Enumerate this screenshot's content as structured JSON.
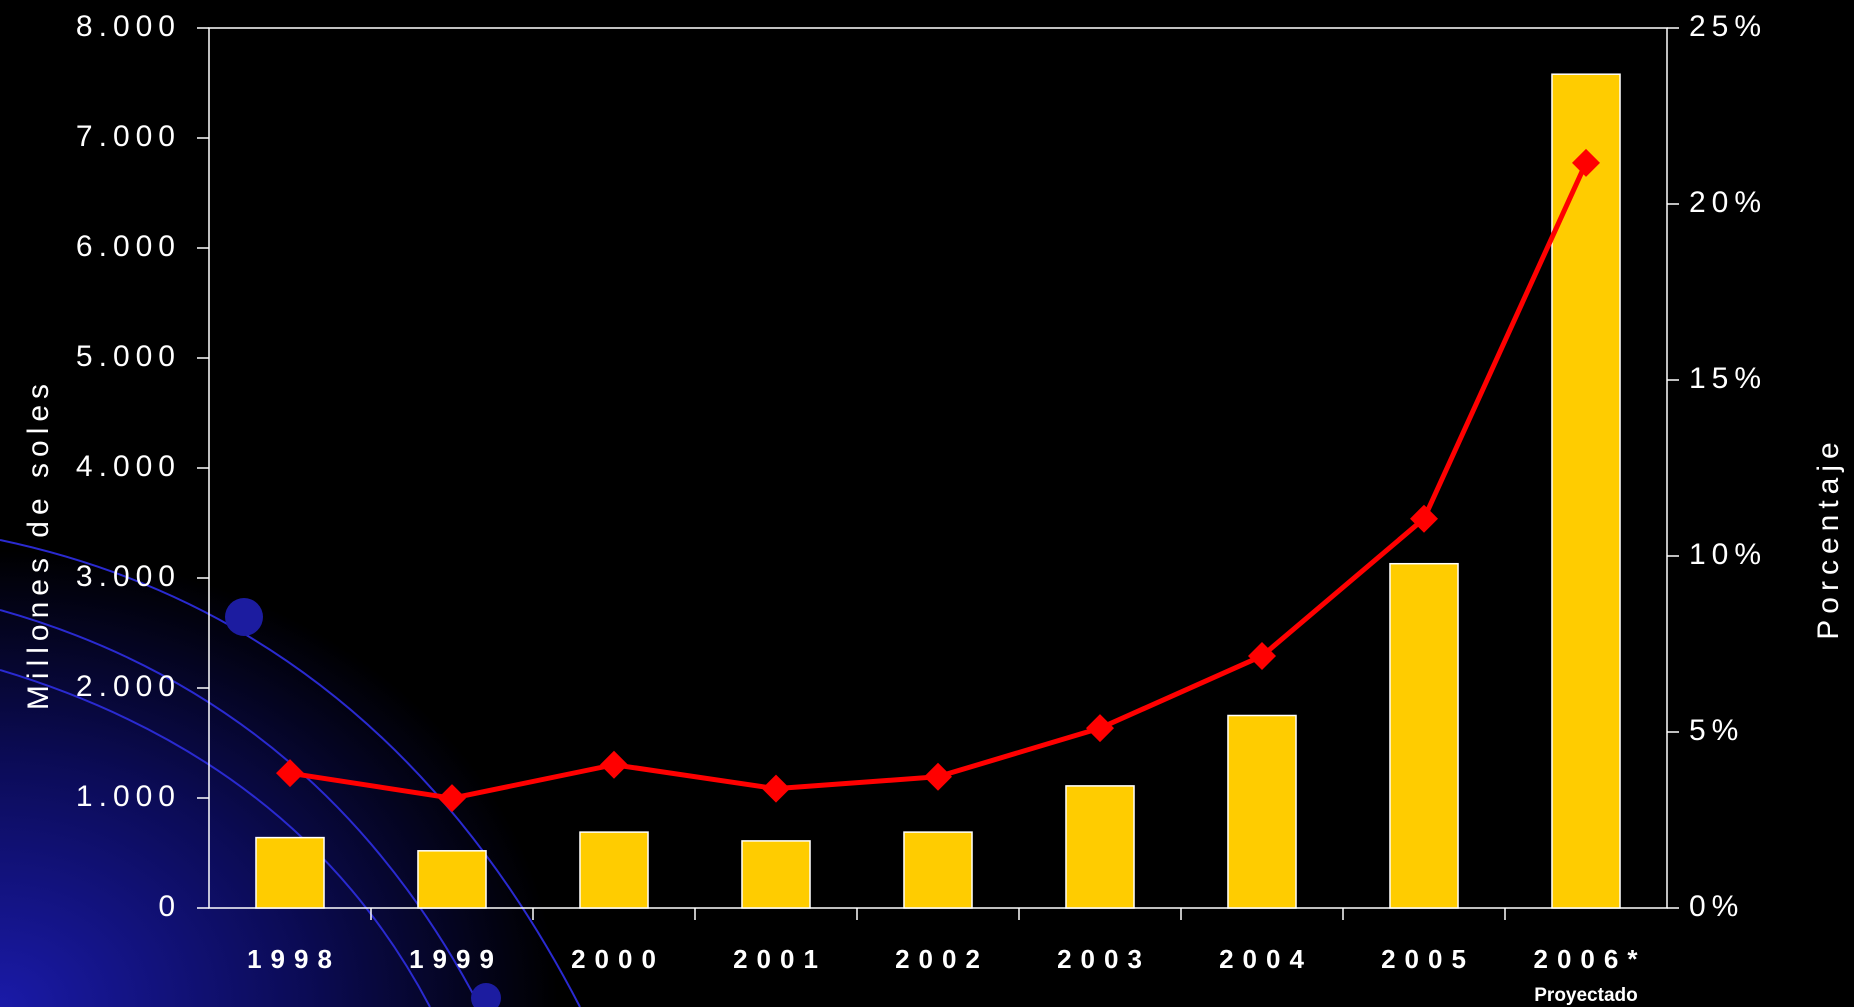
{
  "chart_data": {
    "type": "bar_line",
    "categories": [
      "1998",
      "1999",
      "2000",
      "2001",
      "2002",
      "2003",
      "2004",
      "2005",
      "2006*"
    ],
    "annotation": "Proyectado",
    "ylabel": "Millones de soles",
    "y2label": "Porcentaje",
    "ylim": [
      0,
      8000
    ],
    "yticks": [
      0,
      {
        "value": 1000,
        "label": "1.000"
      },
      {
        "value": 2000,
        "label": "2.000"
      },
      {
        "value": 3000,
        "label": "3.000"
      },
      {
        "value": 4000,
        "label": "4.000"
      },
      {
        "value": 5000,
        "label": "5.000"
      },
      {
        "value": 6000,
        "label": "6.000"
      },
      {
        "value": 7000,
        "label": "7.000"
      },
      {
        "value": 8000,
        "label": "8.000"
      }
    ],
    "y2lim": [
      0,
      25
    ],
    "y2ticks": [
      {
        "value": 0,
        "label": "0%"
      },
      {
        "value": 5,
        "label": "5%"
      },
      {
        "value": 10,
        "label": "10%"
      },
      {
        "value": 15,
        "label": "15%"
      },
      {
        "value": 20,
        "label": "20%"
      },
      {
        "value": 25,
        "label": "25%"
      }
    ],
    "series": [
      {
        "type": "bar",
        "color": "#ffcc00",
        "values": [
          640,
          520,
          690,
          610,
          690,
          1110,
          1750,
          3130,
          7580
        ]
      },
      {
        "type": "line",
        "axis": "y2",
        "color": "#ff0000",
        "values": [
          3.83,
          3.12,
          4.07,
          3.39,
          3.73,
          5.11,
          7.16,
          11.06,
          21.17
        ]
      }
    ]
  }
}
